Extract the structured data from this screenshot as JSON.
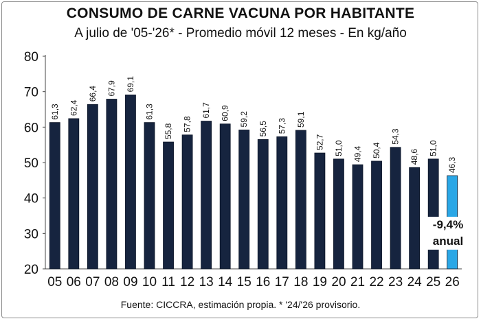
{
  "chart_data": {
    "type": "bar",
    "title": "CONSUMO DE CARNE VACUNA POR HABITANTE",
    "subtitle": "A julio de '05-'26* - Promedio móvil 12 meses -  En kg/año",
    "categories": [
      "05",
      "06",
      "07",
      "08",
      "09",
      "10",
      "11",
      "12",
      "13",
      "14",
      "15",
      "16",
      "17",
      "18",
      "19",
      "20",
      "21",
      "22",
      "23",
      "24",
      "25",
      "26"
    ],
    "values": [
      61.3,
      62.4,
      66.4,
      67.9,
      69.1,
      61.3,
      55.8,
      57.8,
      61.7,
      60.9,
      59.2,
      56.5,
      57.3,
      59.1,
      52.7,
      51.0,
      49.4,
      50.4,
      54.3,
      48.6,
      51.0,
      46.3
    ],
    "data_labels": [
      "61,3",
      "62,4",
      "66,4",
      "67,9",
      "69,1",
      "61,3",
      "55,8",
      "57,8",
      "61,7",
      "60,9",
      "59,2",
      "56,5",
      "57,3",
      "59,1",
      "52,7",
      "51,0",
      "49,4",
      "50,4",
      "54,3",
      "48,6",
      "51,0",
      "46,3"
    ],
    "ylim": [
      20,
      80
    ],
    "yticks": [
      20,
      30,
      40,
      50,
      60,
      70,
      80
    ],
    "grid": false,
    "bar_color": "#16243f",
    "highlight_color": "#2aa7e6",
    "highlight_category": "26",
    "annotation_line1": "-9,4%",
    "annotation_line2": "anual",
    "source": "Fuente: CICCRA, estimación propia. * '24/'26 provisorio."
  }
}
